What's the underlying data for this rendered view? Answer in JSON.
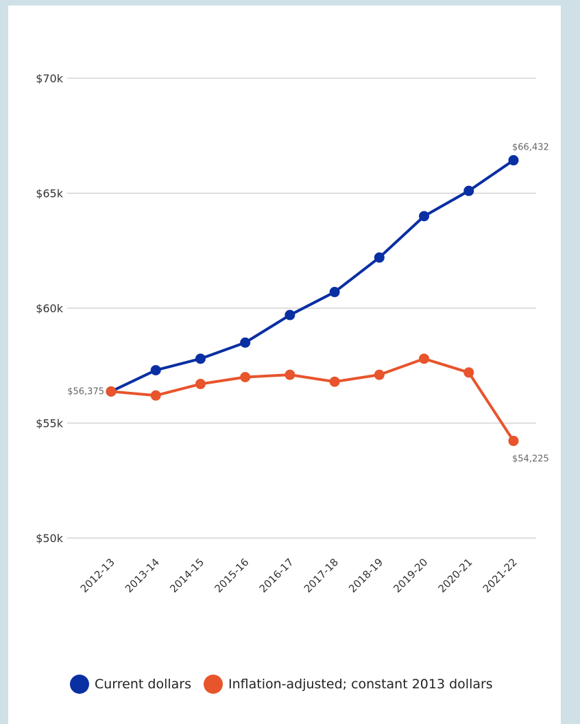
{
  "colors": {
    "current": "#0a2fa3",
    "inflation": "#e8542c",
    "grid": "#cccccc",
    "axis_text": "#333333",
    "label_text": "#666666"
  },
  "chart_data": {
    "type": "line",
    "categories": [
      "2012-13",
      "2013-14",
      "2014-15",
      "2015-16",
      "2016-17",
      "2017-18",
      "2018-19",
      "2019-20",
      "2020-21",
      "2021-22"
    ],
    "series": [
      {
        "name": "Current dollars",
        "color": "#0a2fa3",
        "values": [
          56375,
          57300,
          57800,
          58500,
          59700,
          60700,
          62200,
          64000,
          65100,
          66432
        ]
      },
      {
        "name": "Inflation-adjusted; constant 2013 dollars",
        "color": "#e8542c",
        "values": [
          56375,
          56200,
          56700,
          57000,
          57100,
          56800,
          57100,
          57800,
          57200,
          54225
        ]
      }
    ],
    "ylim": [
      50000,
      70000
    ],
    "y_ticks": [
      {
        "value": 50000,
        "label": "$50k"
      },
      {
        "value": 55000,
        "label": "$55k"
      },
      {
        "value": 60000,
        "label": "$60k"
      },
      {
        "value": 65000,
        "label": "$65k"
      },
      {
        "value": 70000,
        "label": "$70k"
      }
    ],
    "annotations": [
      {
        "series": 0,
        "index": 0,
        "text": "$56,375"
      },
      {
        "series": 0,
        "index": 9,
        "text": "$66,432"
      },
      {
        "series": 1,
        "index": 9,
        "text": "$54,225"
      }
    ],
    "grid": true,
    "legend_position": "bottom"
  },
  "legend": {
    "items": [
      {
        "label": "Current dollars",
        "color": "#0a2fa3"
      },
      {
        "label": "Inflation-adjusted; constant 2013 dollars",
        "color": "#e8542c"
      }
    ]
  }
}
